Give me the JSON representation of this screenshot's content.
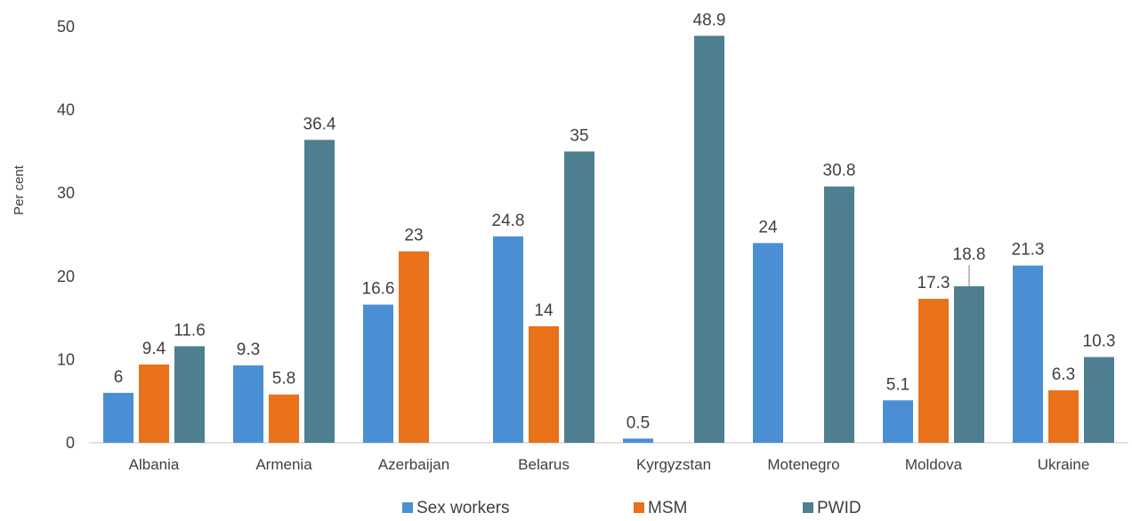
{
  "chart_data": {
    "type": "bar",
    "title": "",
    "xlabel": "",
    "ylabel": "Per cent",
    "ylim": [
      0,
      50
    ],
    "yticks": [
      0,
      10,
      20,
      30,
      40,
      50
    ],
    "grid": false,
    "legend_position": "bottom",
    "categories": [
      "Albania",
      "Armenia",
      "Azerbaijan",
      "Belarus",
      "Kyrgyzstan",
      "Motenegro",
      "Moldova",
      "Ukraine"
    ],
    "series": [
      {
        "name": "Sex workers",
        "color": "#4a8fd4",
        "values": [
          6,
          9.3,
          16.6,
          24.8,
          0.5,
          24,
          5.1,
          21.3
        ],
        "labels": [
          "6",
          "9.3",
          "16.6",
          "24.8",
          "0.5",
          "24",
          "5.1",
          "21.3"
        ]
      },
      {
        "name": "MSM",
        "color": "#e8711a",
        "values": [
          9.4,
          5.8,
          23,
          14,
          null,
          null,
          17.3,
          6.3
        ],
        "labels": [
          "9.4",
          "5.8",
          "23",
          "14",
          "",
          "",
          "17.3",
          "6.3"
        ]
      },
      {
        "name": "PWID",
        "color": "#4e7f91",
        "values": [
          11.6,
          36.4,
          null,
          35,
          48.9,
          30.8,
          18.8,
          10.3
        ],
        "labels": [
          "11.6",
          "36.4",
          "",
          "35",
          "48.9",
          "30.8",
          "18.8",
          "10.3"
        ]
      }
    ]
  }
}
